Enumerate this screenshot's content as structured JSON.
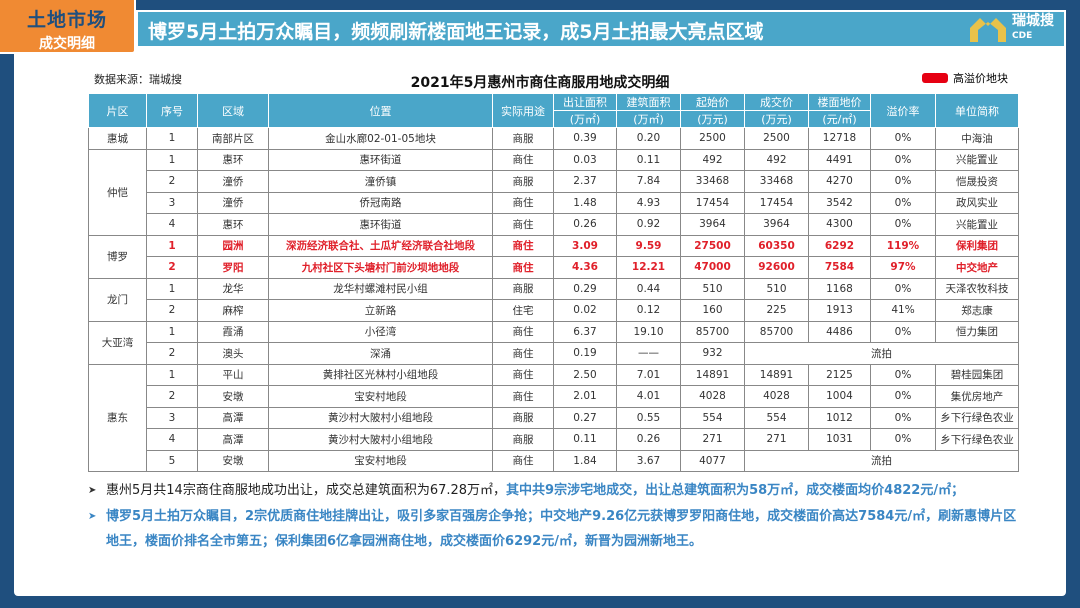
{
  "header": {
    "tab_title": "土地市场",
    "tab_subtitle": "成交明细",
    "banner_title": "博罗5月土拍万众瞩目，频频刷新楼面地王记录，成5月土拍最大亮点区域",
    "logo_name": "瑞城搜",
    "logo_sub": "CDE"
  },
  "source": "数据来源：瑞城搜",
  "table_title": "2021年5月惠州市商住商服用地成交明细",
  "legend": {
    "label": "高溢价地块",
    "color": "#e60012"
  },
  "columns": [
    "片区",
    "序号",
    "区域",
    "位置",
    "实际用途",
    "出让面积",
    "建筑面积",
    "起始价",
    "成交价",
    "楼面地价",
    "溢价率",
    "单位简称"
  ],
  "column_units": [
    "",
    "",
    "",
    "",
    "",
    "(万㎡)",
    "(万㎡)",
    "(万元)",
    "(万元)",
    "(元/㎡)",
    "",
    ""
  ],
  "groups": [
    {
      "district": "惠城",
      "rows": [
        [
          "1",
          "南部片区",
          "金山水廊02-01-05地块",
          "商服",
          "0.39",
          "0.20",
          "2500",
          "2500",
          "12718",
          "0%",
          "中海油"
        ]
      ]
    },
    {
      "district": "仲恺",
      "rows": [
        [
          "1",
          "惠环",
          "惠环街道",
          "商住",
          "0.03",
          "0.11",
          "492",
          "492",
          "4491",
          "0%",
          "兴能置业"
        ],
        [
          "2",
          "潼侨",
          "潼侨镇",
          "商服",
          "2.37",
          "7.84",
          "33468",
          "33468",
          "4270",
          "0%",
          "恺晟投资"
        ],
        [
          "3",
          "潼侨",
          "侨冠南路",
          "商住",
          "1.48",
          "4.93",
          "17454",
          "17454",
          "3542",
          "0%",
          "政风实业"
        ],
        [
          "4",
          "惠环",
          "惠环街道",
          "商住",
          "0.26",
          "0.92",
          "3964",
          "3964",
          "4300",
          "0%",
          "兴能置业"
        ]
      ]
    },
    {
      "district": "博罗",
      "highlight": true,
      "rows": [
        [
          "1",
          "园洲",
          "深沥经济联合社、土瓜圹经济联合社地段",
          "商住",
          "3.09",
          "9.59",
          "27500",
          "60350",
          "6292",
          "119%",
          "保利集团"
        ],
        [
          "2",
          "罗阳",
          "九村社区下头塘村门前沙坝地地段",
          "商住",
          "4.36",
          "12.21",
          "47000",
          "92600",
          "7584",
          "97%",
          "中交地产"
        ]
      ]
    },
    {
      "district": "龙门",
      "rows": [
        [
          "1",
          "龙华",
          "龙华村螺滩村民小组",
          "商服",
          "0.29",
          "0.44",
          "510",
          "510",
          "1168",
          "0%",
          "天泽农牧科技"
        ],
        [
          "2",
          "麻榨",
          "立新路",
          "住宅",
          "0.02",
          "0.12",
          "160",
          "225",
          "1913",
          "41%",
          "郑志康"
        ]
      ]
    },
    {
      "district": "大亚湾",
      "rows": [
        [
          "1",
          "霞涌",
          "小径湾",
          "商住",
          "6.37",
          "19.10",
          "85700",
          "85700",
          "4486",
          "0%",
          "恒力集团"
        ],
        [
          "2",
          "澳头",
          "深涌",
          "商住",
          "0.19",
          "——",
          "932",
          "流拍"
        ]
      ]
    },
    {
      "district": "惠东",
      "rows": [
        [
          "1",
          "平山",
          "黄排社区光林村小组地段",
          "商住",
          "2.50",
          "7.01",
          "14891",
          "14891",
          "2125",
          "0%",
          "碧桂园集团"
        ],
        [
          "2",
          "安墩",
          "宝安村地段",
          "商住",
          "2.01",
          "4.01",
          "4028",
          "4028",
          "1004",
          "0%",
          "集优房地产"
        ],
        [
          "3",
          "高潭",
          "黄沙村大陂村小组地段",
          "商服",
          "0.27",
          "0.55",
          "554",
          "554",
          "1012",
          "0%",
          "乡下行绿色农业"
        ],
        [
          "4",
          "高潭",
          "黄沙村大陂村小组地段",
          "商服",
          "0.11",
          "0.26",
          "271",
          "271",
          "1031",
          "0%",
          "乡下行绿色农业"
        ],
        [
          "5",
          "安墩",
          "宝安村地段",
          "商住",
          "1.84",
          "3.67",
          "4077",
          "流拍"
        ]
      ]
    }
  ],
  "notes": [
    {
      "dark": "惠州5月共14宗商住商服地成功出让，成交总建筑面积为67.28万㎡，",
      "blue": "其中共9宗涉宅地成交，出让总建筑面积为58万㎡，成交楼面均价4822元/㎡；"
    },
    {
      "dark": "",
      "blue": "博罗5月土拍万众瞩目，2宗优质商住地挂牌出让，吸引多家百强房企争抢；中交地产9.26亿元获博罗罗阳商住地，成交楼面价高达7584元/㎡，刷新惠博片区地王，楼面价排名全市第五；保利集团6亿拿园洲商住地，成交楼面价6292元/㎡，新晋为园洲新地王。"
    }
  ]
}
